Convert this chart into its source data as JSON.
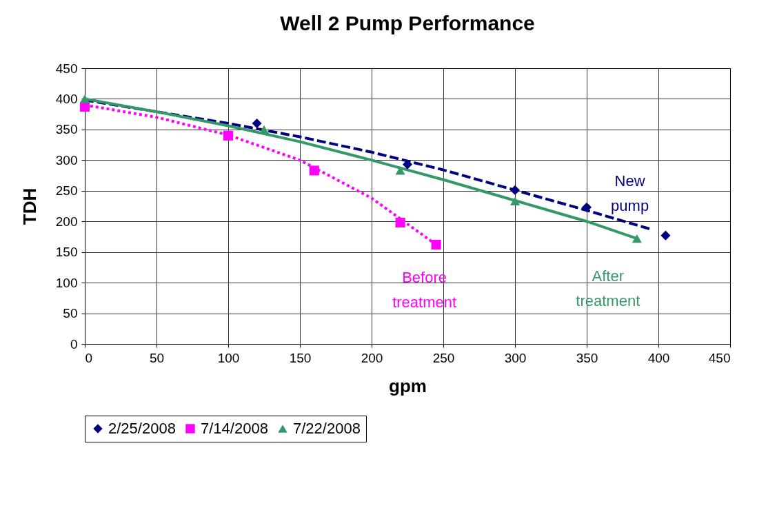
{
  "chart_data": {
    "type": "scatter",
    "title": "Well 2 Pump Performance",
    "xlabel": "gpm",
    "ylabel": "TDH",
    "xlim": [
      0,
      450
    ],
    "xticks": [
      0,
      50,
      100,
      150,
      200,
      250,
      300,
      350,
      400,
      450
    ],
    "ylim": [
      0,
      450
    ],
    "yticks": [
      0,
      50,
      100,
      150,
      200,
      250,
      300,
      350,
      400,
      450
    ],
    "grid": true,
    "legend": "bottom",
    "series": [
      {
        "name": "2/25/2008",
        "color": "#000080",
        "marker": "diamond",
        "x": [
          120,
          225,
          300,
          350,
          405
        ],
        "values": [
          360,
          293,
          251,
          223,
          177
        ]
      },
      {
        "name": "7/14/2008",
        "color": "#ff00ff",
        "marker": "square",
        "x": [
          0,
          100,
          160,
          220,
          245
        ],
        "values": [
          387,
          340,
          283,
          198,
          162
        ]
      },
      {
        "name": "7/22/2008",
        "color": "#339966",
        "marker": "triangle",
        "x": [
          0,
          125,
          220,
          300,
          385
        ],
        "values": [
          400,
          350,
          283,
          233,
          172
        ]
      },
      {
        "type": "line",
        "color": "#000080",
        "line_style": "dashed",
        "x": [
          0,
          50,
          100,
          150,
          200,
          250,
          300,
          350,
          395
        ],
        "values": [
          398,
          379,
          360,
          338,
          313,
          284,
          251,
          218,
          187
        ]
      },
      {
        "type": "line",
        "color": "#ff00ff",
        "line_style": "dotted",
        "x": [
          0,
          50,
          100,
          150,
          200,
          245
        ],
        "values": [
          390,
          370,
          341,
          300,
          238,
          162
        ]
      },
      {
        "type": "line",
        "color": "#339966",
        "line_style": "solid",
        "x": [
          0,
          50,
          100,
          150,
          200,
          250,
          300,
          350,
          385
        ],
        "values": [
          400,
          379,
          356,
          330,
          300,
          268,
          234,
          200,
          172
        ]
      }
    ],
    "annotations": [
      "New pump",
      "Before treatment",
      "After treatment"
    ]
  }
}
